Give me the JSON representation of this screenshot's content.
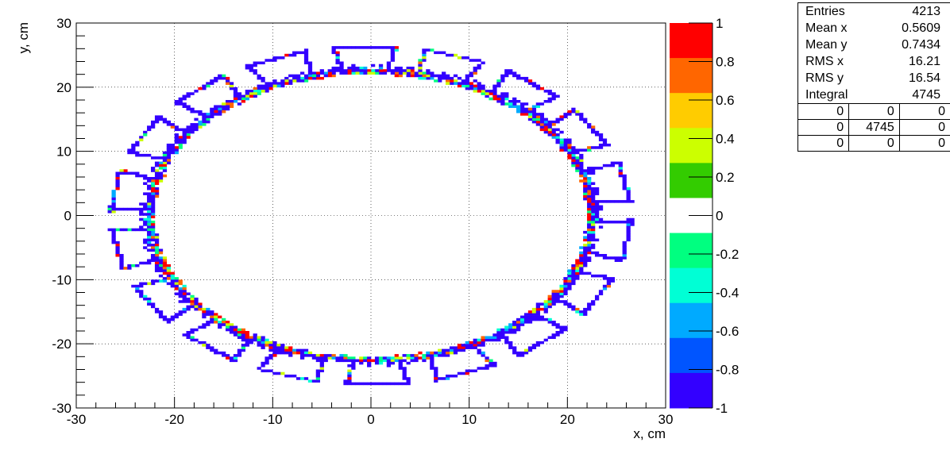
{
  "chart_data": {
    "type": "heatmap",
    "title": "",
    "xlabel": "x, cm",
    "ylabel": "y, cm",
    "xlim": [
      -30,
      30
    ],
    "ylim": [
      -30,
      30
    ],
    "x_ticks": [
      -30,
      -20,
      -10,
      0,
      10,
      20,
      30
    ],
    "y_ticks": [
      -30,
      -20,
      -10,
      0,
      10,
      20,
      30
    ],
    "grid": true,
    "palette_axis": {
      "range": [
        -1,
        1
      ],
      "ticks": [
        "1",
        "0.8",
        "0.6",
        "0.4",
        "0.2",
        "0",
        "-0.2",
        "-0.4",
        "-0.6",
        "-0.8",
        "-1"
      ],
      "colors": [
        "#ff0000",
        "#ff6600",
        "#ffcc00",
        "#ccff00",
        "#33cc00",
        "#ffffff",
        "#00ff80",
        "#00ffd5",
        "#00aaff",
        "#0055ff",
        "#3300ff"
      ]
    },
    "description_pattern": {
      "inner_ring": {
        "center": [
          0,
          0
        ],
        "radius_x": 22.5,
        "radius_y": 22.5
      },
      "outer_loops": {
        "count": 18,
        "outer_radius": 26.5
      }
    }
  },
  "stats": {
    "rows": [
      {
        "label": "Entries",
        "value": "4213"
      },
      {
        "label": "Mean x",
        "value": "0.5609"
      },
      {
        "label": "Mean y",
        "value": "0.7434"
      },
      {
        "label": "RMS x",
        "value": "16.21"
      },
      {
        "label": "RMS y",
        "value": "16.54"
      },
      {
        "label": "Integral",
        "value": "4745"
      }
    ],
    "overflow": [
      [
        "0",
        "0",
        "0"
      ],
      [
        "0",
        "4745",
        "0"
      ],
      [
        "0",
        "0",
        "0"
      ]
    ]
  }
}
